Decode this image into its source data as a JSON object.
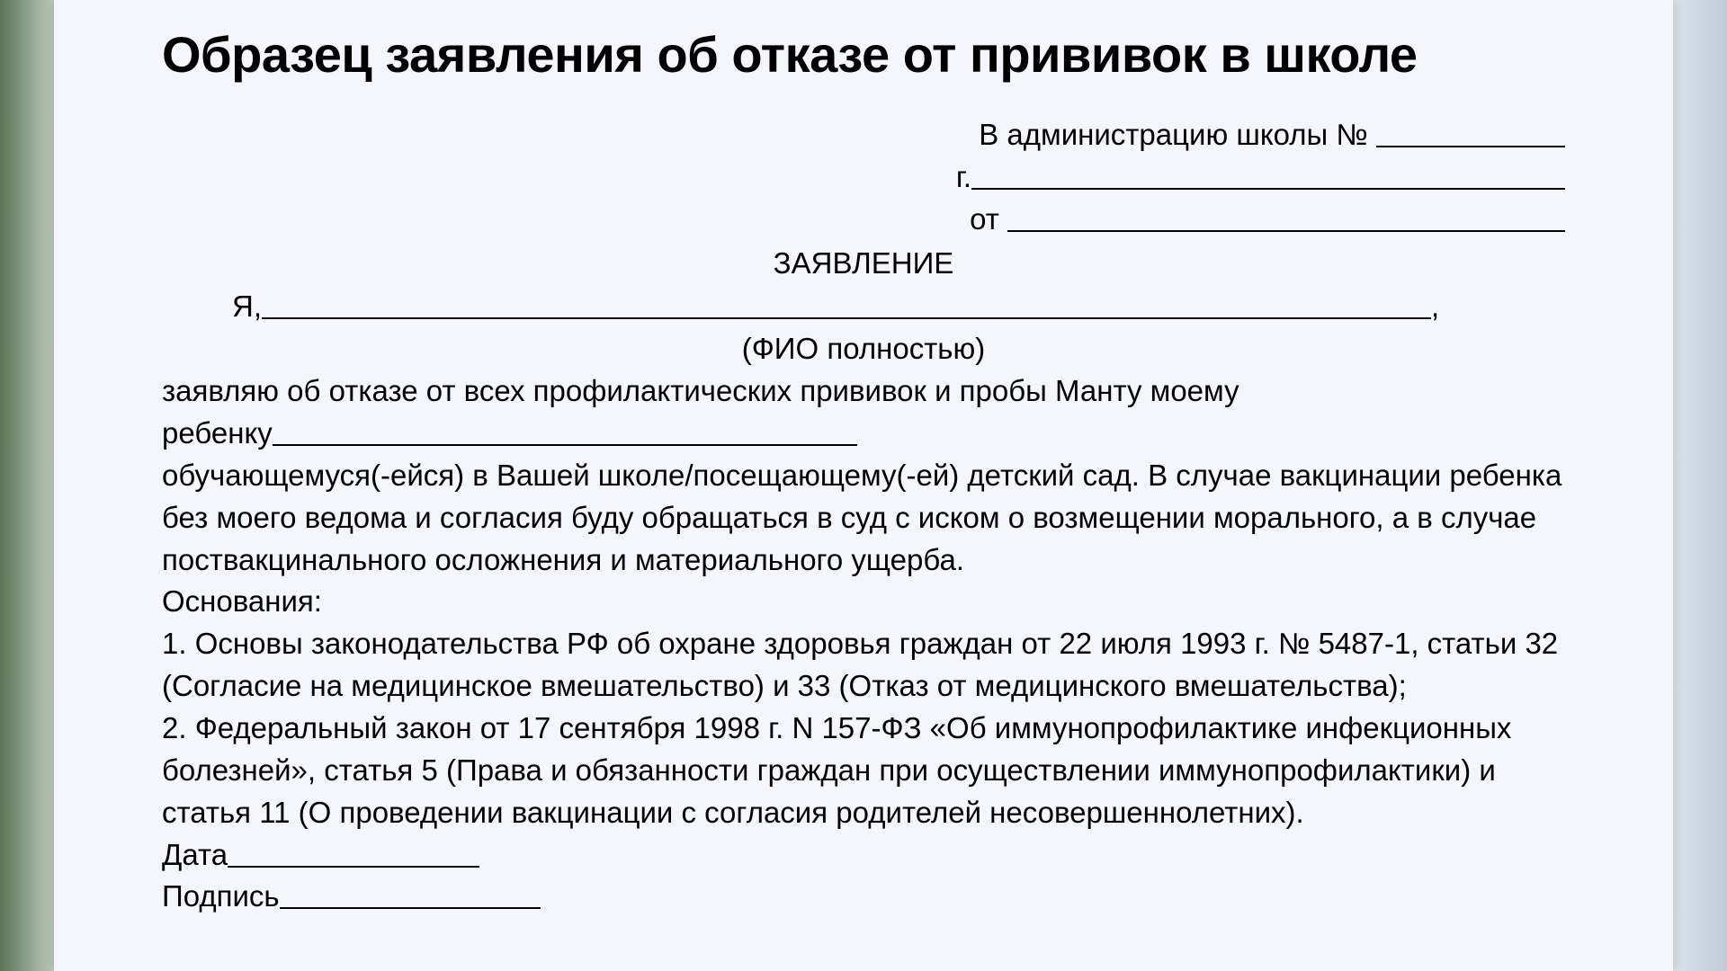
{
  "title": "Образец заявления об отказе от прививок в школе",
  "header": {
    "to_admin": "В администрацию школы №",
    "city_prefix": "г.",
    "from_prefix": "от"
  },
  "doc_heading": "ЗАЯВЛЕНИЕ",
  "name_line": {
    "prefix": "Я,",
    "comma": ","
  },
  "name_hint": "(ФИО полностью)",
  "para1_a": "заявляю об отказе от всех профилактических прививок и пробы Манту моему",
  "para1_b_prefix": "ребенку",
  "para2": "обучающемуся(-ейся) в Вашей школе/посещающему(-ей) детский сад. В случае вакцинации ребенка без моего ведома и согласия буду обращаться в суд с иском о возмещении морального, а в случае поствакцинального осложнения и материального ущерба.",
  "grounds_label": "Основания:",
  "ground1": "1. Основы законодательства РФ об охране здоровья граждан от 22 июля 1993 г. № 5487-1, статьи 32 (Согласие на медицинское вмешательство) и 33 (Отказ от медицинского вмешательства);",
  "ground2": "2. Федеральный закон от 17 сентября 1998 г. N 157-ФЗ «Об иммунопрофилактике инфекционных болезней», статья 5 (Права и обязанности граждан при осуществлении иммунопрофилактики) и статья 11 (О проведении вакцинации с согласия родителей несовершеннолетних).",
  "date_label": "Дата",
  "signature_label": "Подпись",
  "style": {
    "title_fontsize": 56,
    "body_fontsize": 33,
    "text_color": "#000000",
    "page_bg": "#f4f6fb",
    "underline_color": "#000000",
    "font_family": "Arial"
  }
}
